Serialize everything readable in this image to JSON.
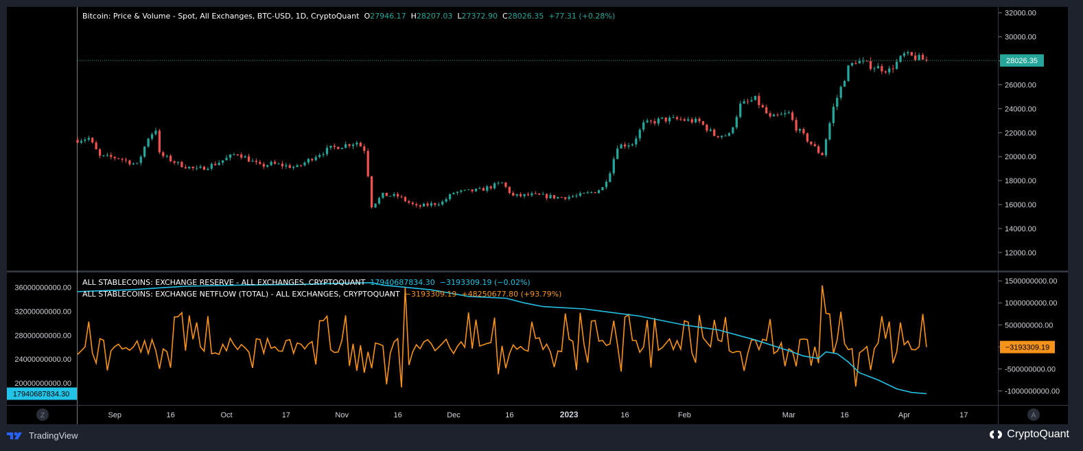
{
  "colors": {
    "up": "#26a69a",
    "down": "#ef5350",
    "reserve": "#22c3e6",
    "netflow": "#f7931a",
    "grid": "#363a45",
    "axis_text": "#d1d4dc",
    "pane_bg": "#000000",
    "page_bg": "#1e222d"
  },
  "price_legend": {
    "title": "Bitcoin: Price & Volume - Spot, All Exchanges, BTC-USD, 1D, CryptoQuant",
    "o_label": "O",
    "o_value": "27946.17",
    "h_label": "H",
    "h_value": "28207.03",
    "l_label": "L",
    "l_value": "27372.90",
    "c_label": "C",
    "c_value": "28026.35",
    "change": "+77.31 (+0.28%)"
  },
  "reserve_legend": {
    "title": "ALL STABLECOINS: EXCHANGE RESERVE - ALL EXCHANGES, CRYPTOQUANT",
    "value": "17940687834.30",
    "change": "−3193309.19 (−0.02%)"
  },
  "netflow_legend": {
    "title": "ALL STABLECOINS: EXCHANGE NETFLOW (TOTAL) - ALL EXCHANGES, CRYPTOQUANT",
    "value": "−3193309.19",
    "change": "+48250677.80 (+93.79%)"
  },
  "footer": {
    "tv_logo_icon": "tradingview-logo-icon",
    "tv_label": "TradingView",
    "cq_logo_icon": "cryptoquant-logo-icon",
    "cq_label": "CryptoQuant",
    "left_button": "Z",
    "right_button": "A"
  },
  "chart_data": [
    {
      "type": "candlestick",
      "title": "Bitcoin: Price & Volume - Spot, All Exchanges, BTC-USD, 1D, CryptoQuant",
      "x_start": "2022-08-22",
      "x_end": "2023-04-07",
      "ylim": [
        10500,
        32500
      ],
      "yticks": [
        "32000.00",
        "30000.00",
        "28000.00",
        "26000.00",
        "24000.00",
        "22000.00",
        "20000.00",
        "18000.00",
        "16000.00",
        "14000.00",
        "12000.00"
      ],
      "last_price_label": "28026.35",
      "last_price": 28026.35,
      "close_path": [
        [
          "2022-08-22",
          21400
        ],
        [
          "2022-08-25",
          21550
        ],
        [
          "2022-08-28",
          20000
        ],
        [
          "2022-09-02",
          19900
        ],
        [
          "2022-09-07",
          19300
        ],
        [
          "2022-09-10",
          21600
        ],
        [
          "2022-09-12",
          22300
        ],
        [
          "2022-09-13",
          20200
        ],
        [
          "2022-09-18",
          19400
        ],
        [
          "2022-09-23",
          18900
        ],
        [
          "2022-09-28",
          19400
        ],
        [
          "2022-10-04",
          20300
        ],
        [
          "2022-10-10",
          19200
        ],
        [
          "2022-10-13",
          19400
        ],
        [
          "2022-10-20",
          19100
        ],
        [
          "2022-10-25",
          20100
        ],
        [
          "2022-10-29",
          20700
        ],
        [
          "2022-11-05",
          21200
        ],
        [
          "2022-11-07",
          20600
        ],
        [
          "2022-11-08",
          18500
        ],
        [
          "2022-11-09",
          15900
        ],
        [
          "2022-11-12",
          16800
        ],
        [
          "2022-11-16",
          16700
        ],
        [
          "2022-11-21",
          15800
        ],
        [
          "2022-11-28",
          16200
        ],
        [
          "2022-12-01",
          17000
        ],
        [
          "2022-12-08",
          17200
        ],
        [
          "2022-12-14",
          17800
        ],
        [
          "2022-12-17",
          16700
        ],
        [
          "2022-12-22",
          16800
        ],
        [
          "2022-12-29",
          16600
        ],
        [
          "2023-01-03",
          16700
        ],
        [
          "2023-01-08",
          17100
        ],
        [
          "2023-01-10",
          17400
        ],
        [
          "2023-01-12",
          18800
        ],
        [
          "2023-01-14",
          20900
        ],
        [
          "2023-01-18",
          21100
        ],
        [
          "2023-01-21",
          22700
        ],
        [
          "2023-01-26",
          23100
        ],
        [
          "2023-01-31",
          23100
        ],
        [
          "2023-02-05",
          22900
        ],
        [
          "2023-02-09",
          21800
        ],
        [
          "2023-02-13",
          21800
        ],
        [
          "2023-02-16",
          24300
        ],
        [
          "2023-02-20",
          24800
        ],
        [
          "2023-02-24",
          23200
        ],
        [
          "2023-03-01",
          23600
        ],
        [
          "2023-03-03",
          22400
        ],
        [
          "2023-03-09",
          20400
        ],
        [
          "2023-03-10",
          20200
        ],
        [
          "2023-03-13",
          24100
        ],
        [
          "2023-03-17",
          27400
        ],
        [
          "2023-03-19",
          28000
        ],
        [
          "2023-03-24",
          27500
        ],
        [
          "2023-03-28",
          27200
        ],
        [
          "2023-04-01",
          28500
        ],
        [
          "2023-04-07",
          28026
        ]
      ]
    },
    {
      "type": "line",
      "name": "ALL STABLECOINS: EXCHANGE RESERVE - ALL EXCHANGES, CRYPTOQUANT",
      "axis": "left",
      "ylim": [
        16300000000,
        38500000000
      ],
      "yticks": [
        "36000000000.00",
        "32000000000.00",
        "28000000000.00",
        "24000000000.00",
        "20000000000.00"
      ],
      "last_value_label": "17940687834.30",
      "points": [
        [
          "2022-08-22",
          35300000000
        ],
        [
          "2022-09-05",
          35600000000
        ],
        [
          "2022-09-20",
          36200000000
        ],
        [
          "2022-10-05",
          36400000000
        ],
        [
          "2022-10-20",
          36500000000
        ],
        [
          "2022-11-02",
          36700000000
        ],
        [
          "2022-11-09",
          36800000000
        ],
        [
          "2022-11-12",
          36400000000
        ],
        [
          "2022-11-25",
          35600000000
        ],
        [
          "2022-12-05",
          34500000000
        ],
        [
          "2022-12-15",
          34200000000
        ],
        [
          "2022-12-20",
          33400000000
        ],
        [
          "2022-12-25",
          32800000000
        ],
        [
          "2023-01-05",
          32400000000
        ],
        [
          "2023-01-20",
          31200000000
        ],
        [
          "2023-02-01",
          29700000000
        ],
        [
          "2023-02-10",
          28900000000
        ],
        [
          "2023-02-20",
          27200000000
        ],
        [
          "2023-03-01",
          25400000000
        ],
        [
          "2023-03-05",
          24500000000
        ],
        [
          "2023-03-09",
          24100000000
        ],
        [
          "2023-03-11",
          25200000000
        ],
        [
          "2023-03-14",
          24900000000
        ],
        [
          "2023-03-17",
          23500000000
        ],
        [
          "2023-03-20",
          21700000000
        ],
        [
          "2023-03-25",
          20500000000
        ],
        [
          "2023-03-30",
          19000000000
        ],
        [
          "2023-04-03",
          18400000000
        ],
        [
          "2023-04-07",
          18200000000
        ]
      ]
    },
    {
      "type": "line",
      "name": "ALL STABLECOINS: EXCHANGE NETFLOW (TOTAL) - ALL EXCHANGES, CRYPTOQUANT",
      "axis": "right",
      "ylim": [
        -1320000000,
        1690000000
      ],
      "yticks": [
        "1500000000.00",
        "1000000000.00",
        "500000000.00",
        "0.00",
        "-500000000.00",
        "-1000000000.00"
      ],
      "last_value_label": "−3193309.19",
      "spikes": [
        [
          "2022-11-18",
          1350000000
        ],
        [
          "2022-12-13",
          920000000
        ],
        [
          "2023-03-10",
          1400000000
        ],
        [
          "2023-03-15",
          800000000
        ],
        [
          "2022-11-13",
          -850000000
        ],
        [
          "2022-11-17",
          -920000000
        ],
        [
          "2022-12-13",
          -620000000
        ],
        [
          "2023-03-19",
          -900000000
        ]
      ],
      "end": [
        "2023-04-07",
        -3193309
      ]
    }
  ],
  "x_axis": {
    "ticks": [
      {
        "label": "Sep",
        "date": "2022-09-01",
        "bold": false
      },
      {
        "label": "16",
        "date": "2022-09-16",
        "bold": false
      },
      {
        "label": "Oct",
        "date": "2022-10-01",
        "bold": false
      },
      {
        "label": "17",
        "date": "2022-10-17",
        "bold": false
      },
      {
        "label": "Nov",
        "date": "2022-11-01",
        "bold": false
      },
      {
        "label": "16",
        "date": "2022-11-16",
        "bold": false
      },
      {
        "label": "Dec",
        "date": "2022-12-01",
        "bold": false
      },
      {
        "label": "16",
        "date": "2022-12-16",
        "bold": false
      },
      {
        "label": "2023",
        "date": "2023-01-01",
        "bold": true
      },
      {
        "label": "16",
        "date": "2023-01-16",
        "bold": false
      },
      {
        "label": "Feb",
        "date": "2023-02-01",
        "bold": false
      },
      {
        "label": "Mar",
        "date": "2023-03-01",
        "bold": false
      },
      {
        "label": "16",
        "date": "2023-03-16",
        "bold": false
      },
      {
        "label": "Apr",
        "date": "2023-04-01",
        "bold": false
      },
      {
        "label": "17",
        "date": "2023-04-17",
        "bold": false
      }
    ]
  }
}
